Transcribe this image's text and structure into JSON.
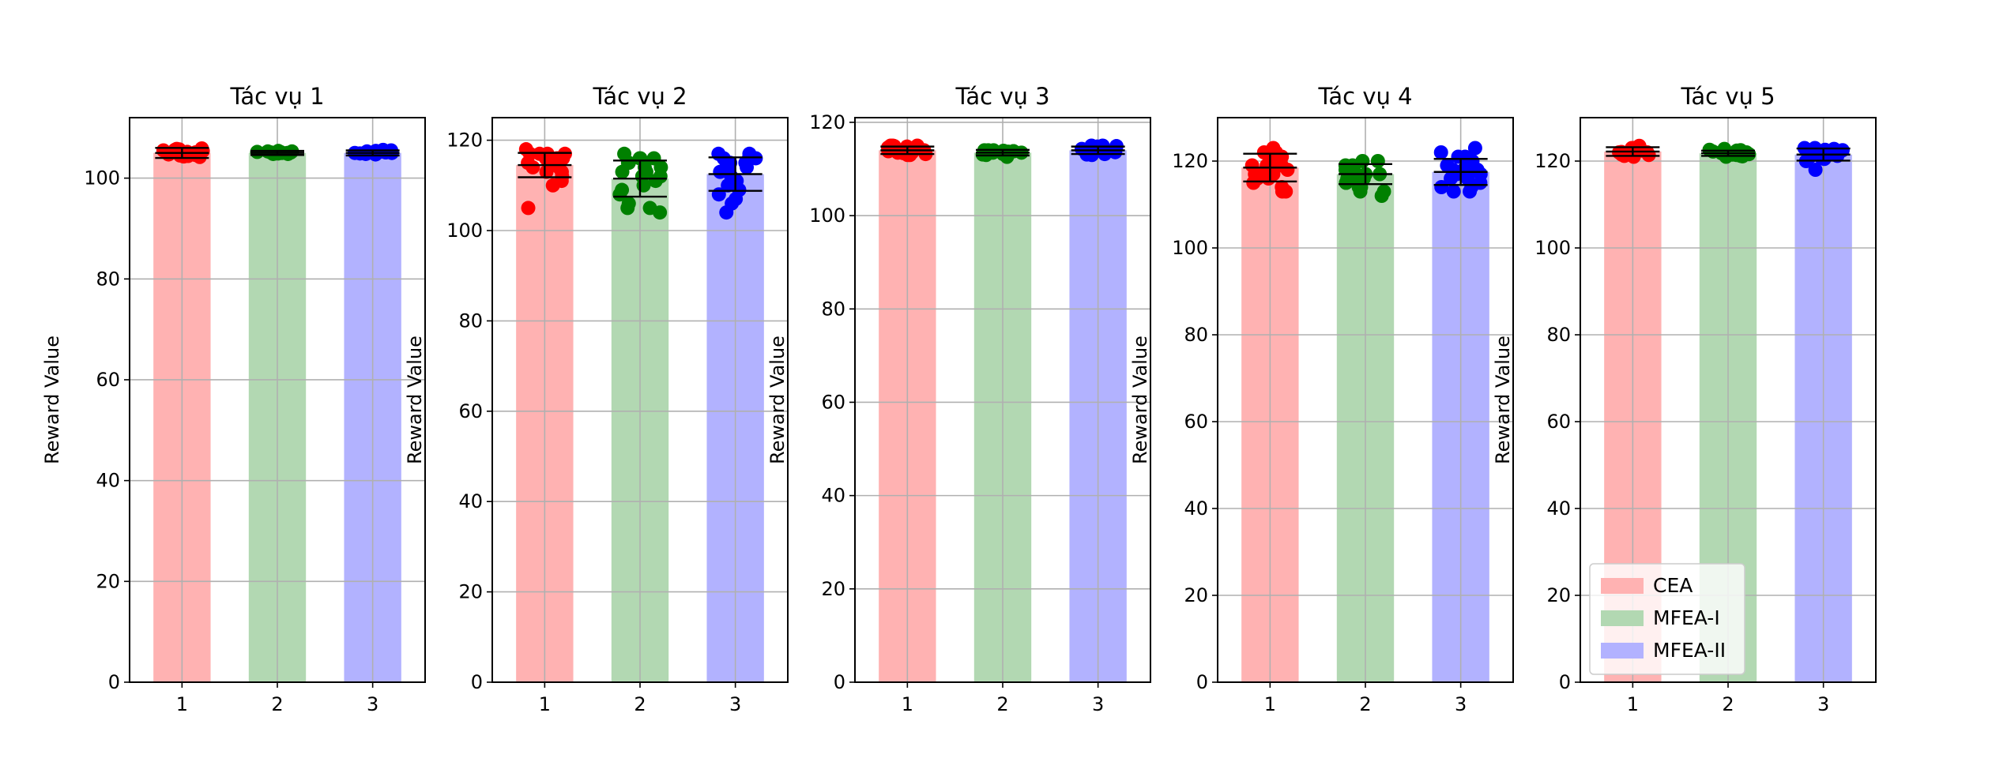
{
  "chart_data": [
    {
      "type": "bar",
      "title": "Tác vụ 1",
      "ylabel": "Reward Value",
      "xlabel": "",
      "categories": [
        "1",
        "2",
        "3"
      ],
      "yticks": [
        "0",
        "20",
        "40",
        "60",
        "80",
        "100"
      ],
      "ylim": [
        0,
        112
      ],
      "grid": true,
      "series": [
        {
          "name": "CEA",
          "mean": 105,
          "error": 1.0,
          "points": [
            104.2,
            105.5,
            104.8,
            105.8,
            104.5,
            105.2,
            104.9,
            105.6,
            104.3,
            105.9,
            105.1,
            104.7,
            105.4,
            104.6,
            105.3,
            104.9,
            105.7,
            104.4
          ]
        },
        {
          "name": "MFEA-I",
          "mean": 105,
          "error": 0.4,
          "points": [
            105.0,
            105.2,
            104.9,
            105.3,
            105.1,
            104.8,
            105.0,
            105.4,
            104.9,
            105.2,
            105.1,
            105.0,
            104.8,
            105.3,
            105.1,
            105.0
          ]
        },
        {
          "name": "MFEA-II",
          "mean": 105,
          "error": 0.5,
          "points": [
            105.0,
            105.3,
            104.8,
            105.5,
            105.1,
            104.9,
            105.2,
            105.4,
            104.7,
            105.0,
            105.3,
            105.1,
            104.9,
            105.6,
            105.2,
            105.0
          ]
        }
      ]
    },
    {
      "type": "bar",
      "title": "Tác vụ 2",
      "ylabel": "Reward Value",
      "xlabel": "",
      "categories": [
        "1",
        "2",
        "3"
      ],
      "yticks": [
        "0",
        "20",
        "40",
        "60",
        "80",
        "100",
        "120"
      ],
      "ylim": [
        0,
        125
      ],
      "grid": true,
      "series": [
        {
          "name": "CEA",
          "mean": 114.5,
          "error": 2.7,
          "points": [
            105,
            111,
            113,
            116,
            117,
            115,
            118,
            114,
            116,
            117,
            112,
            115,
            116,
            113,
            117,
            110,
            116,
            115,
            117,
            114
          ]
        },
        {
          "name": "MFEA-I",
          "mean": 111.5,
          "error": 4.0,
          "points": [
            104,
            105,
            106,
            108,
            109,
            110,
            111,
            112,
            113,
            114,
            115,
            116,
            117,
            115,
            113,
            116,
            114,
            105,
            116,
            112
          ]
        },
        {
          "name": "MFEA-II",
          "mean": 112.5,
          "error": 3.7,
          "points": [
            104,
            106,
            107,
            108,
            109,
            110,
            111,
            112,
            113,
            114,
            115,
            116,
            117,
            116,
            115,
            114,
            113,
            116,
            115,
            117
          ]
        }
      ]
    },
    {
      "type": "bar",
      "title": "Tác vụ 3",
      "ylabel": "Reward Value",
      "xlabel": "",
      "categories": [
        "1",
        "2",
        "3"
      ],
      "yticks": [
        "0",
        "20",
        "40",
        "60",
        "80",
        "100",
        "120"
      ],
      "ylim": [
        0,
        121
      ],
      "grid": true,
      "series": [
        {
          "name": "CEA",
          "mean": 114,
          "error": 0.8,
          "points": [
            113,
            114,
            115,
            113.5,
            114.5,
            113,
            115,
            114,
            113.5,
            114.8,
            113.2,
            114.6,
            115,
            113.8,
            114.2,
            113.4,
            114.9,
            113.6
          ]
        },
        {
          "name": "MFEA-I",
          "mean": 113.5,
          "error": 0.6,
          "points": [
            113,
            113.5,
            114,
            113.2,
            113.8,
            113.6,
            114,
            113.1,
            113.9,
            113.4,
            112.6,
            113.7,
            114,
            113.3,
            113.5,
            113.8
          ]
        },
        {
          "name": "MFEA-II",
          "mean": 114,
          "error": 0.8,
          "points": [
            113,
            114,
            115,
            113.5,
            114.5,
            113.2,
            114.8,
            113.8,
            114.2,
            115,
            113.4,
            114.6,
            113.6,
            114.9,
            113.1,
            114.3
          ]
        }
      ]
    },
    {
      "type": "bar",
      "title": "Tác vụ 4",
      "ylabel": "Reward Value",
      "xlabel": "",
      "categories": [
        "1",
        "2",
        "3"
      ],
      "yticks": [
        "0",
        "20",
        "40",
        "60",
        "80",
        "100",
        "120"
      ],
      "ylim": [
        0,
        130
      ],
      "grid": true,
      "series": [
        {
          "name": "CEA",
          "mean": 118.5,
          "error": 3.2,
          "points": [
            113,
            114,
            115,
            116,
            117,
            118,
            119,
            120,
            121,
            122,
            123,
            119,
            118,
            120,
            117,
            113,
            121,
            116,
            119,
            122
          ]
        },
        {
          "name": "MFEA-I",
          "mean": 117,
          "error": 2.3,
          "points": [
            112,
            113,
            114,
            115,
            116,
            117,
            118,
            119,
            120,
            118,
            117,
            116,
            115,
            119,
            114,
            113,
            118,
            120,
            117,
            116
          ]
        },
        {
          "name": "MFEA-II",
          "mean": 117.5,
          "error": 3.0,
          "points": [
            113,
            114,
            115,
            116,
            117,
            118,
            119,
            120,
            121,
            122,
            123,
            118,
            117,
            116,
            119,
            114,
            120,
            113,
            121,
            118
          ]
        }
      ]
    },
    {
      "type": "bar",
      "title": "Tác vụ 5",
      "ylabel": "Reward Value",
      "xlabel": "",
      "categories": [
        "1",
        "2",
        "3"
      ],
      "yticks": [
        "0",
        "20",
        "40",
        "60",
        "80",
        "100",
        "120"
      ],
      "ylim": [
        0,
        130
      ],
      "grid": true,
      "legend": {
        "position": "lower-left",
        "entries": [
          "CEA",
          "MFEA-I",
          "MFEA-II"
        ]
      },
      "series": [
        {
          "name": "CEA",
          "mean": 122.2,
          "error": 1.0,
          "points": [
            121,
            122,
            123,
            122.5,
            121.5,
            123.5,
            122,
            121.2,
            122.8,
            123,
            121.8,
            122.4,
            123.2,
            121.4,
            122.6,
            122.1
          ]
        },
        {
          "name": "MFEA-I",
          "mean": 121.8,
          "error": 0.6,
          "points": [
            121,
            121.5,
            122,
            122.5,
            121.2,
            121.8,
            122.2,
            121.4,
            122.6,
            121.6,
            122.4,
            121.1,
            122.8,
            121.9
          ]
        },
        {
          "name": "MFEA-II",
          "mean": 121.5,
          "error": 1.4,
          "points": [
            118,
            120,
            121,
            122,
            123,
            121.5,
            122.5,
            120.5,
            121.8,
            122.2,
            122.8,
            121.2,
            120.8,
            122.6,
            121.4,
            123
          ]
        }
      ]
    }
  ],
  "colors": {
    "CEA": {
      "bar": "#ffb2b2",
      "dot": "#ff0000"
    },
    "MFEA-I": {
      "bar": "#b2d8b2",
      "dot": "#008000"
    },
    "MFEA-II": {
      "bar": "#b2b2ff",
      "dot": "#0000ff"
    },
    "grid": "#b0b0b0",
    "axis": "#000000",
    "errorbar": "#000000"
  }
}
